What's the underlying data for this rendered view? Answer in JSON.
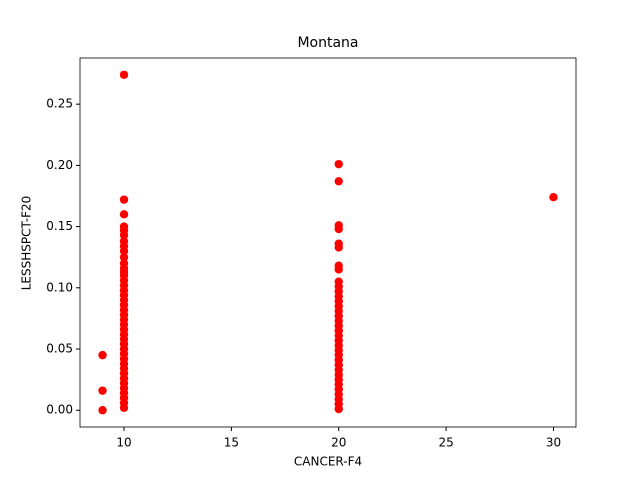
{
  "chart_data": {
    "type": "scatter",
    "title": "Montana",
    "x_label": "CANCER-F4",
    "y_label": "LESSHSPCT-F20",
    "color": "#ff0000",
    "x": [
      9,
      9,
      9,
      10,
      10,
      10,
      10,
      10,
      10,
      10,
      10,
      10,
      10,
      10,
      10,
      10,
      10,
      10,
      10,
      10,
      10,
      10,
      10,
      10,
      10,
      10,
      10,
      10,
      10,
      10,
      10,
      10,
      10,
      10,
      10,
      10,
      10,
      10,
      10,
      10,
      10,
      10,
      10,
      10,
      20,
      20,
      20,
      20,
      20,
      20,
      20,
      20,
      20,
      20,
      20,
      20,
      20,
      20,
      20,
      20,
      20,
      20,
      20,
      20,
      20,
      20,
      20,
      20,
      20,
      20,
      20,
      20,
      20,
      20,
      20,
      20,
      20,
      20,
      20,
      30
    ],
    "y": [
      0.045,
      0.016,
      0.0,
      0.274,
      0.172,
      0.16,
      0.15,
      0.147,
      0.143,
      0.138,
      0.134,
      0.13,
      0.125,
      0.12,
      0.116,
      0.113,
      0.11,
      0.106,
      0.102,
      0.098,
      0.094,
      0.09,
      0.086,
      0.082,
      0.078,
      0.074,
      0.07,
      0.066,
      0.062,
      0.058,
      0.054,
      0.05,
      0.046,
      0.042,
      0.038,
      0.034,
      0.03,
      0.026,
      0.022,
      0.018,
      0.014,
      0.01,
      0.006,
      0.002,
      0.201,
      0.187,
      0.151,
      0.148,
      0.136,
      0.133,
      0.118,
      0.115,
      0.105,
      0.101,
      0.097,
      0.093,
      0.089,
      0.085,
      0.081,
      0.077,
      0.073,
      0.069,
      0.065,
      0.061,
      0.057,
      0.053,
      0.049,
      0.045,
      0.041,
      0.037,
      0.033,
      0.029,
      0.025,
      0.021,
      0.017,
      0.013,
      0.009,
      0.005,
      0.001,
      0.174
    ],
    "xlim": [
      7.95,
      31.05
    ],
    "xticks": [
      10,
      15,
      20,
      25,
      30
    ],
    "ylim": [
      -0.0137,
      0.2877
    ],
    "yticks": [
      {
        "value": 0,
        "label": "0.00"
      },
      {
        "value": 0.05,
        "label": "0.05"
      },
      {
        "value": 0.1,
        "label": "0.10"
      },
      {
        "value": 0.15,
        "label": "0.15"
      },
      {
        "value": 0.2,
        "label": "0.20"
      },
      {
        "value": 0.25,
        "label": "0.25"
      }
    ]
  }
}
